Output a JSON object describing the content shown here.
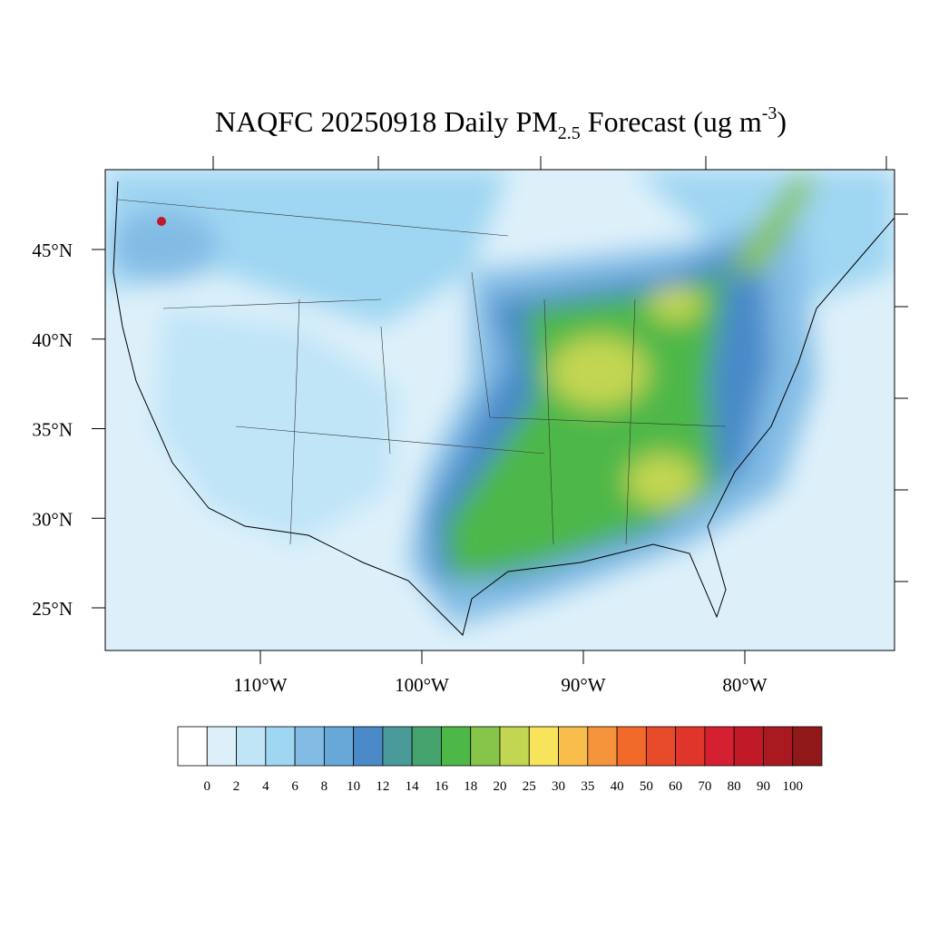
{
  "title": {
    "main": "NAQFC 20250918 Daily PM",
    "sub": "2.5",
    "middle": " Forecast (ug m",
    "sup": "-3",
    "end": ")"
  },
  "lat_ticks": [
    {
      "value": 45,
      "label": "45°N"
    },
    {
      "value": 40,
      "label": "40°N"
    },
    {
      "value": 35,
      "label": "35°N"
    },
    {
      "value": 30,
      "label": "30°N"
    },
    {
      "value": 25,
      "label": "25°N"
    }
  ],
  "lon_ticks": [
    {
      "value": -110,
      "label": "110°W"
    },
    {
      "value": -100,
      "label": "100°W"
    },
    {
      "value": -90,
      "label": "90°W"
    },
    {
      "value": -80,
      "label": "80°W"
    }
  ],
  "colorbar": {
    "levels": [
      0,
      2,
      4,
      6,
      8,
      10,
      12,
      14,
      16,
      18,
      20,
      25,
      30,
      35,
      40,
      50,
      60,
      70,
      80,
      90,
      100
    ],
    "colors": [
      "#ffffff",
      "#ddf0fa",
      "#c0e5f7",
      "#9fd6f2",
      "#82bce5",
      "#68a8d9",
      "#4a8ac8",
      "#4a9a9a",
      "#45a46e",
      "#4db848",
      "#86c44a",
      "#c3d651",
      "#f8e45a",
      "#f8bd4a",
      "#f5943a",
      "#f26a2a",
      "#e84b2a",
      "#e0352a",
      "#d42030",
      "#c01a28",
      "#a81a20",
      "#901818"
    ]
  }
}
